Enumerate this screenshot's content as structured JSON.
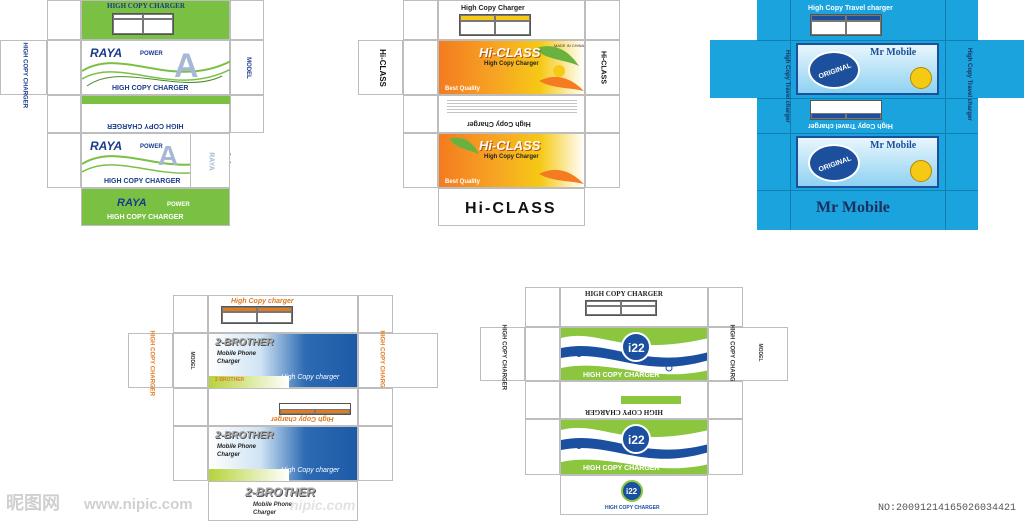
{
  "box1": {
    "top_label": "HIGH COPY CHARGER",
    "brand": "RAYA",
    "brand_sub": "POWER",
    "side_label": "HIGH COPY CHARGER",
    "model_label": "MODEL",
    "panel_label": "HIGH COPY CHARGER",
    "flap_label": "HIGH COPY CHARGER",
    "table_head": [
      "INPUT",
      "OUTPUT"
    ],
    "colors": {
      "green": "#7ac143",
      "navy": "#1a3a8a"
    }
  },
  "box2": {
    "top_label": "High Copy Charger",
    "brand": "Hi-CLASS",
    "tagline": "High Copy Charger",
    "quality": "Best Quality",
    "made_in": "MADE IN CHINA",
    "side_label": "Hi-CLASS",
    "side_sub": "High Copy Charger",
    "bottom_brand": "Hi-CLASS",
    "colors": {
      "orange": "#f47b20",
      "yellow": "#f6c915",
      "green": "#6ab23f"
    }
  },
  "box3": {
    "top_label": "High Copy Travel charger",
    "brand": "Mr Mobile",
    "badge": "ORIGINAL",
    "side_label": "High Copy Travel charger",
    "panel_label": "High Copy Travel charger",
    "bottom_brand": "Mr Mobile",
    "colors": {
      "cyan": "#1aa3dc",
      "blue": "#1c4f9c"
    }
  },
  "box4": {
    "top_label": "High Copy charger",
    "brand": "2-BROTHER",
    "line1": "Mobile Phone",
    "line2": "Charger",
    "footer_brand": "2-BROTHER",
    "panel_label": "High Copy charger",
    "side_label": "HIGH COPY CHARGER",
    "model_label": "MODEL",
    "colors": {
      "blue": "#1d5aa8",
      "lime": "#b6d33b",
      "orange": "#e07b20"
    }
  },
  "box5": {
    "top_label": "HIGH COPY CHARGER",
    "brand": "i22",
    "panel_label": "HIGH COPY CHARGER",
    "side_label": "HIGH COPY CHARGER",
    "model_label": "MODEL",
    "footer_label": "HIGH COPY CHARGER",
    "colors": {
      "blue": "#1b4fa0",
      "green": "#8cc63f"
    }
  },
  "watermark": {
    "site_cn": "昵图网",
    "site": "www.nipic.com",
    "site2": "nipic.com",
    "id": "NO:20091214165026034421"
  }
}
